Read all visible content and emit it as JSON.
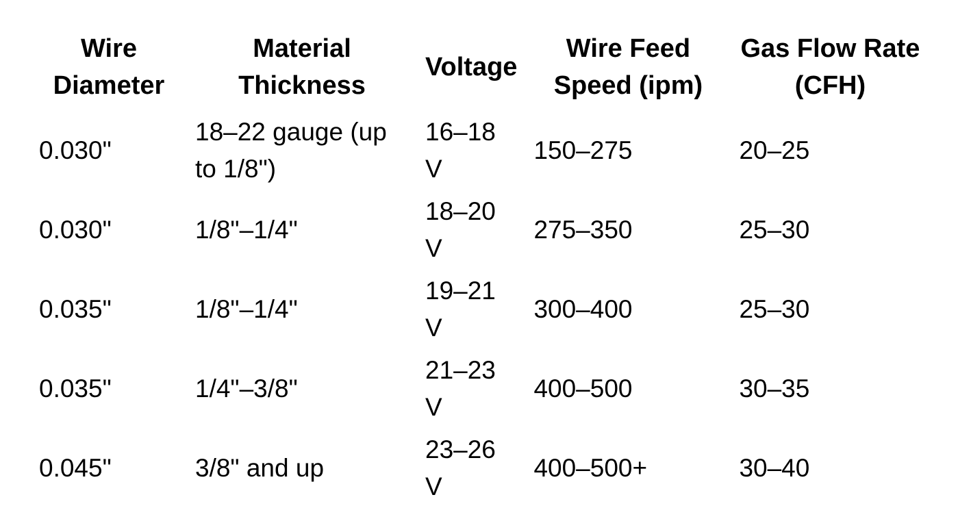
{
  "table": {
    "headers": [
      "Wire Diameter",
      "Material Thickness",
      "Voltage",
      "Wire Feed Speed (ipm)",
      "Gas Flow Rate (CFH)"
    ],
    "rows": [
      [
        "0.030\"",
        "18–22 gauge (up to 1/8\")",
        "16–18 V",
        "150–275",
        "20–25"
      ],
      [
        "0.030\"",
        "1/8\"–1/4\"",
        "18–20 V",
        "275–350",
        "25–30"
      ],
      [
        "0.035\"",
        "1/8\"–1/4\"",
        "19–21 V",
        "300–400",
        "25–30"
      ],
      [
        "0.035\"",
        "1/4\"–3/8\"",
        "21–23 V",
        "400–500",
        "30–35"
      ],
      [
        "0.045\"",
        "3/8\" and up",
        "23–26 V",
        "400–500+",
        "30–40"
      ]
    ]
  }
}
